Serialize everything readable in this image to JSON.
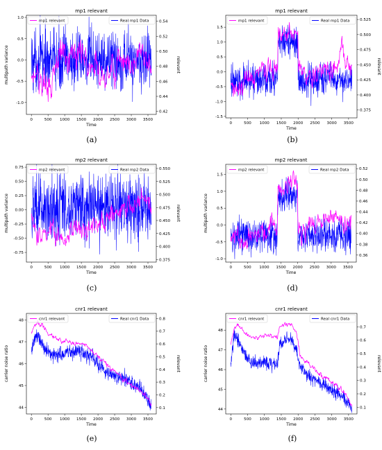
{
  "figure": {
    "captions": [
      "(a)",
      "(b)",
      "(c)",
      "(d)",
      "(e)",
      "(f)"
    ]
  },
  "colors": {
    "relevant": "#ff00ff",
    "real": "#0000ff"
  },
  "chart_data": [
    {
      "type": "line",
      "title": "mp1 relevant",
      "xlabel": "Time",
      "ylabel": "multipath variance",
      "ylabel_right": "relevant",
      "xlim": [
        -150,
        3750
      ],
      "ylim": [
        -1.28,
        1.05
      ],
      "ylim_right": [
        0.416,
        0.548
      ],
      "xticks": [
        0,
        500,
        1000,
        1500,
        2000,
        2500,
        3000,
        3500
      ],
      "yticks": [
        "-1.0",
        "-0.5",
        "0.0",
        "0.5",
        "1.0"
      ],
      "yticks_values": [
        -1.0,
        -0.5,
        0.0,
        0.5,
        1.0
      ],
      "yticks_right": [
        "0.42",
        "0.44",
        "0.46",
        "0.48",
        "0.50",
        "0.52",
        "0.54"
      ],
      "yticks_right_values": [
        0.42,
        0.44,
        0.46,
        0.48,
        0.5,
        0.52,
        0.54
      ],
      "legend": [
        "mp1 relevant",
        "Real mp1 Data"
      ],
      "legend_position": "top",
      "series": [
        {
          "name": "Real mp1 Data",
          "axis": "left",
          "color": "#0000ff",
          "x": [
            0,
            400,
            800,
            1200,
            1600,
            2000,
            2400,
            2800,
            3200,
            3600
          ],
          "y": [
            0.0,
            0.0,
            0.0,
            0.0,
            0.0,
            0.0,
            0.0,
            0.0,
            0.0,
            0.0
          ],
          "spread": 0.6
        },
        {
          "name": "mp1 relevant",
          "axis": "right",
          "color": "#ff00ff",
          "x": [
            0,
            200,
            400,
            600,
            800,
            1000,
            1200,
            1400,
            1600,
            1800,
            2000,
            2200,
            2400,
            2600,
            2800,
            3000,
            3200,
            3400,
            3600
          ],
          "y": [
            0.47,
            0.465,
            0.455,
            0.45,
            0.49,
            0.5,
            0.485,
            0.5,
            0.49,
            0.48,
            0.475,
            0.47,
            0.475,
            0.485,
            0.48,
            0.48,
            0.49,
            0.5,
            0.47
          ],
          "spread": 0.012
        }
      ]
    },
    {
      "type": "line",
      "title": "mp1 relevant",
      "xlabel": "Time",
      "ylabel": "",
      "ylabel_right": "relevant",
      "xlim": [
        -150,
        3750
      ],
      "ylim": [
        -1.55,
        1.9
      ],
      "ylim_right": [
        0.362,
        0.532
      ],
      "xticks": [
        0,
        500,
        1000,
        1500,
        2000,
        2500,
        3000,
        3500
      ],
      "yticks": [
        "-1.5",
        "-1.0",
        "-0.5",
        "0.0",
        "0.5",
        "1.0",
        "1.5"
      ],
      "yticks_values": [
        -1.5,
        -1.0,
        -0.5,
        0.0,
        0.5,
        1.0,
        1.5
      ],
      "yticks_right": [
        "0.375",
        "0.400",
        "0.425",
        "0.450",
        "0.475",
        "0.500",
        "0.525"
      ],
      "yticks_right_values": [
        0.375,
        0.4,
        0.425,
        0.45,
        0.475,
        0.5,
        0.525
      ],
      "legend": [
        "mp1 relevant",
        "Real mp1 Data"
      ],
      "legend_position": "top",
      "series": [
        {
          "name": "Real mp1 Data",
          "axis": "left",
          "color": "#0000ff",
          "x": [
            0,
            400,
            800,
            1200,
            1390,
            1410,
            1600,
            1800,
            1990,
            2010,
            2400,
            2800,
            3200,
            3600
          ],
          "y": [
            -0.3,
            -0.3,
            -0.25,
            -0.25,
            -0.25,
            1.0,
            1.0,
            1.0,
            1.0,
            -0.3,
            -0.3,
            -0.25,
            -0.3,
            -0.3
          ],
          "spread": 0.45
        },
        {
          "name": "mp1 relevant",
          "axis": "right",
          "color": "#ff00ff",
          "x": [
            0,
            200,
            400,
            600,
            800,
            1000,
            1200,
            1390,
            1410,
            1600,
            1800,
            1990,
            2010,
            2200,
            2400,
            2600,
            2800,
            3000,
            3200,
            3300,
            3400,
            3600
          ],
          "y": [
            0.42,
            0.41,
            0.415,
            0.43,
            0.44,
            0.445,
            0.44,
            0.45,
            0.51,
            0.505,
            0.5,
            0.5,
            0.44,
            0.435,
            0.43,
            0.44,
            0.445,
            0.44,
            0.455,
            0.48,
            0.46,
            0.45
          ],
          "spread": 0.01
        }
      ]
    },
    {
      "type": "line",
      "title": "mp2 relevant",
      "xlabel": "Time",
      "ylabel": "multipath variance",
      "ylabel_right": "relevant",
      "xlim": [
        -150,
        3750
      ],
      "ylim": [
        -0.92,
        0.8
      ],
      "ylim_right": [
        0.37,
        0.558
      ],
      "xticks": [
        0,
        500,
        1000,
        1500,
        2000,
        2500,
        3000,
        3500
      ],
      "yticks": [
        "-0.75",
        "-0.50",
        "-0.25",
        "0.00",
        "0.25",
        "0.50",
        "0.75"
      ],
      "yticks_values": [
        -0.75,
        -0.5,
        -0.25,
        0.0,
        0.25,
        0.5,
        0.75
      ],
      "yticks_right": [
        "0.375",
        "0.400",
        "0.425",
        "0.450",
        "0.475",
        "0.500",
        "0.525",
        "0.550"
      ],
      "yticks_right_values": [
        0.375,
        0.4,
        0.425,
        0.45,
        0.475,
        0.5,
        0.525,
        0.55
      ],
      "legend": [
        "mp2 relevant",
        "Real mp2 Data"
      ],
      "legend_position": "top",
      "series": [
        {
          "name": "Real mp2 Data",
          "axis": "left",
          "color": "#0000ff",
          "x": [
            0,
            400,
            800,
            1200,
            1600,
            2000,
            2400,
            2800,
            3200,
            3600
          ],
          "y": [
            0.05,
            0.05,
            0.05,
            0.05,
            0.05,
            0.05,
            0.05,
            0.05,
            0.05,
            0.05
          ],
          "spread": 0.5
        },
        {
          "name": "mp2 relevant",
          "axis": "right",
          "color": "#ff00ff",
          "x": [
            0,
            200,
            400,
            600,
            800,
            1000,
            1200,
            1400,
            1600,
            1800,
            2000,
            2200,
            2400,
            2600,
            2800,
            3000,
            3200,
            3400,
            3600
          ],
          "y": [
            0.45,
            0.415,
            0.42,
            0.43,
            0.42,
            0.41,
            0.43,
            0.435,
            0.44,
            0.43,
            0.44,
            0.45,
            0.46,
            0.47,
            0.48,
            0.47,
            0.49,
            0.5,
            0.47
          ],
          "spread": 0.012
        }
      ]
    },
    {
      "type": "line",
      "title": "mp2 relevant",
      "xlabel": "Time",
      "ylabel": "multipath variance",
      "ylabel_right": "",
      "xlim": [
        -150,
        3750
      ],
      "ylim": [
        -1.1,
        1.8
      ],
      "ylim_right": [
        0.347,
        0.528
      ],
      "xticks": [
        0,
        500,
        1000,
        1500,
        2000,
        2500,
        3000,
        3500
      ],
      "yticks": [
        "-1.0",
        "-0.5",
        "0.0",
        "0.5",
        "1.0",
        "1.5"
      ],
      "yticks_values": [
        -1.0,
        -0.5,
        0.0,
        0.5,
        1.0,
        1.5
      ],
      "yticks_right": [
        "0.36",
        "0.38",
        "0.40",
        "0.42",
        "0.44",
        "0.46",
        "0.48",
        "0.50",
        "0.52"
      ],
      "yticks_right_values": [
        0.36,
        0.38,
        0.4,
        0.42,
        0.44,
        0.46,
        0.48,
        0.5,
        0.52
      ],
      "legend": [
        "mp2 relevant",
        "Real mp2 Data"
      ],
      "legend_position": "top",
      "series": [
        {
          "name": "Real mp2 Data",
          "axis": "left",
          "color": "#0000ff",
          "x": [
            0,
            400,
            800,
            1200,
            1390,
            1410,
            1600,
            1800,
            1990,
            2010,
            2400,
            2800,
            3200,
            3600
          ],
          "y": [
            -0.35,
            -0.35,
            -0.3,
            -0.3,
            -0.3,
            0.85,
            0.9,
            0.9,
            0.9,
            -0.35,
            -0.3,
            -0.3,
            -0.3,
            -0.35
          ],
          "spread": 0.42
        },
        {
          "name": "mp2 relevant",
          "axis": "right",
          "color": "#ff00ff",
          "x": [
            0,
            200,
            400,
            600,
            800,
            1000,
            1200,
            1390,
            1410,
            1600,
            1800,
            1990,
            2010,
            2200,
            2400,
            2600,
            2800,
            3000,
            3200,
            3400,
            3600
          ],
          "y": [
            0.4,
            0.385,
            0.39,
            0.395,
            0.4,
            0.405,
            0.41,
            0.41,
            0.48,
            0.485,
            0.49,
            0.49,
            0.4,
            0.41,
            0.42,
            0.425,
            0.42,
            0.43,
            0.43,
            0.42,
            0.42
          ],
          "spread": 0.012
        }
      ]
    },
    {
      "type": "line",
      "title": "cnr1 relevant",
      "xlabel": "Time",
      "ylabel": "carrier noise ratio",
      "ylabel_right": "relevant",
      "xlim": [
        -150,
        3750
      ],
      "ylim": [
        43.7,
        48.3
      ],
      "ylim_right": [
        0.05,
        0.84
      ],
      "xticks": [
        0,
        500,
        1000,
        1500,
        2000,
        2500,
        3000,
        3500
      ],
      "yticks": [
        "44",
        "45",
        "46",
        "47",
        "48"
      ],
      "yticks_values": [
        44,
        45,
        46,
        47,
        48
      ],
      "yticks_right": [
        "0.1",
        "0.2",
        "0.3",
        "0.4",
        "0.5",
        "0.6",
        "0.7",
        "0.8"
      ],
      "yticks_right_values": [
        0.1,
        0.2,
        0.3,
        0.4,
        0.5,
        0.6,
        0.7,
        0.8
      ],
      "legend": [
        "cnr1 relevant",
        "Real cnr1 Data"
      ],
      "legend_position": "top",
      "series": [
        {
          "name": "Real cnr1 Data",
          "axis": "left",
          "color": "#0000ff",
          "x": [
            0,
            100,
            200,
            400,
            600,
            800,
            1000,
            1200,
            1400,
            1600,
            1800,
            2000,
            2200,
            2400,
            2600,
            2800,
            3000,
            3200,
            3400,
            3550,
            3600
          ],
          "y": [
            46.5,
            47.2,
            47.3,
            46.7,
            46.4,
            46.4,
            46.5,
            46.5,
            46.6,
            46.5,
            46.3,
            46.0,
            45.7,
            45.5,
            45.4,
            45.3,
            45.1,
            44.9,
            44.6,
            44.2,
            44.1
          ],
          "spread": 0.28
        },
        {
          "name": "cnr1 relevant",
          "axis": "right",
          "color": "#ff00ff",
          "x": [
            0,
            100,
            200,
            400,
            600,
            800,
            1000,
            1200,
            1400,
            1600,
            1800,
            2000,
            2200,
            2400,
            2600,
            2800,
            3000,
            3200,
            3400,
            3550,
            3600
          ],
          "y": [
            0.68,
            0.76,
            0.78,
            0.72,
            0.66,
            0.63,
            0.62,
            0.6,
            0.61,
            0.6,
            0.56,
            0.5,
            0.45,
            0.4,
            0.35,
            0.31,
            0.28,
            0.24,
            0.2,
            0.14,
            0.12
          ],
          "spread": 0.012
        }
      ]
    },
    {
      "type": "line",
      "title": "cnr1 relevant",
      "xlabel": "Time",
      "ylabel": "carrier noise ratio",
      "ylabel_right": "relevant",
      "xlim": [
        -150,
        3750
      ],
      "ylim": [
        43.75,
        48.85
      ],
      "ylim_right": [
        0.05,
        0.8
      ],
      "xticks": [
        0,
        500,
        1000,
        1500,
        2000,
        2500,
        3000,
        3500
      ],
      "yticks": [
        "44",
        "45",
        "46",
        "47",
        "48"
      ],
      "yticks_values": [
        44,
        45,
        46,
        47,
        48
      ],
      "yticks_right": [
        "0.1",
        "0.2",
        "0.3",
        "0.4",
        "0.5",
        "0.6",
        "0.7"
      ],
      "yticks_right_values": [
        0.1,
        0.2,
        0.3,
        0.4,
        0.5,
        0.6,
        0.7
      ],
      "legend": [
        "cnr1 relevant",
        "Real cnr1 Data"
      ],
      "legend_position": "top",
      "series": [
        {
          "name": "Real cnr1 Data",
          "axis": "left",
          "color": "#0000ff",
          "x": [
            0,
            100,
            200,
            400,
            600,
            800,
            1000,
            1200,
            1390,
            1450,
            1600,
            1800,
            1950,
            2050,
            2200,
            2400,
            2600,
            2800,
            3000,
            3200,
            3400,
            3600
          ],
          "y": [
            46.3,
            47.8,
            47.5,
            46.8,
            46.3,
            46.3,
            46.4,
            46.3,
            46.3,
            47.3,
            47.5,
            47.5,
            47.0,
            46.2,
            45.9,
            45.6,
            45.4,
            45.2,
            45.0,
            44.8,
            44.5,
            44.0
          ],
          "spread": 0.28
        },
        {
          "name": "cnr1 relevant",
          "axis": "right",
          "color": "#ff00ff",
          "x": [
            0,
            100,
            200,
            400,
            600,
            800,
            1000,
            1200,
            1390,
            1450,
            1600,
            1800,
            1950,
            2050,
            2200,
            2400,
            2600,
            2800,
            3000,
            3200,
            3400,
            3600
          ],
          "y": [
            0.55,
            0.7,
            0.72,
            0.67,
            0.62,
            0.62,
            0.63,
            0.63,
            0.62,
            0.71,
            0.72,
            0.72,
            0.66,
            0.5,
            0.44,
            0.4,
            0.36,
            0.33,
            0.29,
            0.25,
            0.2,
            0.12
          ],
          "spread": 0.012
        }
      ]
    }
  ]
}
